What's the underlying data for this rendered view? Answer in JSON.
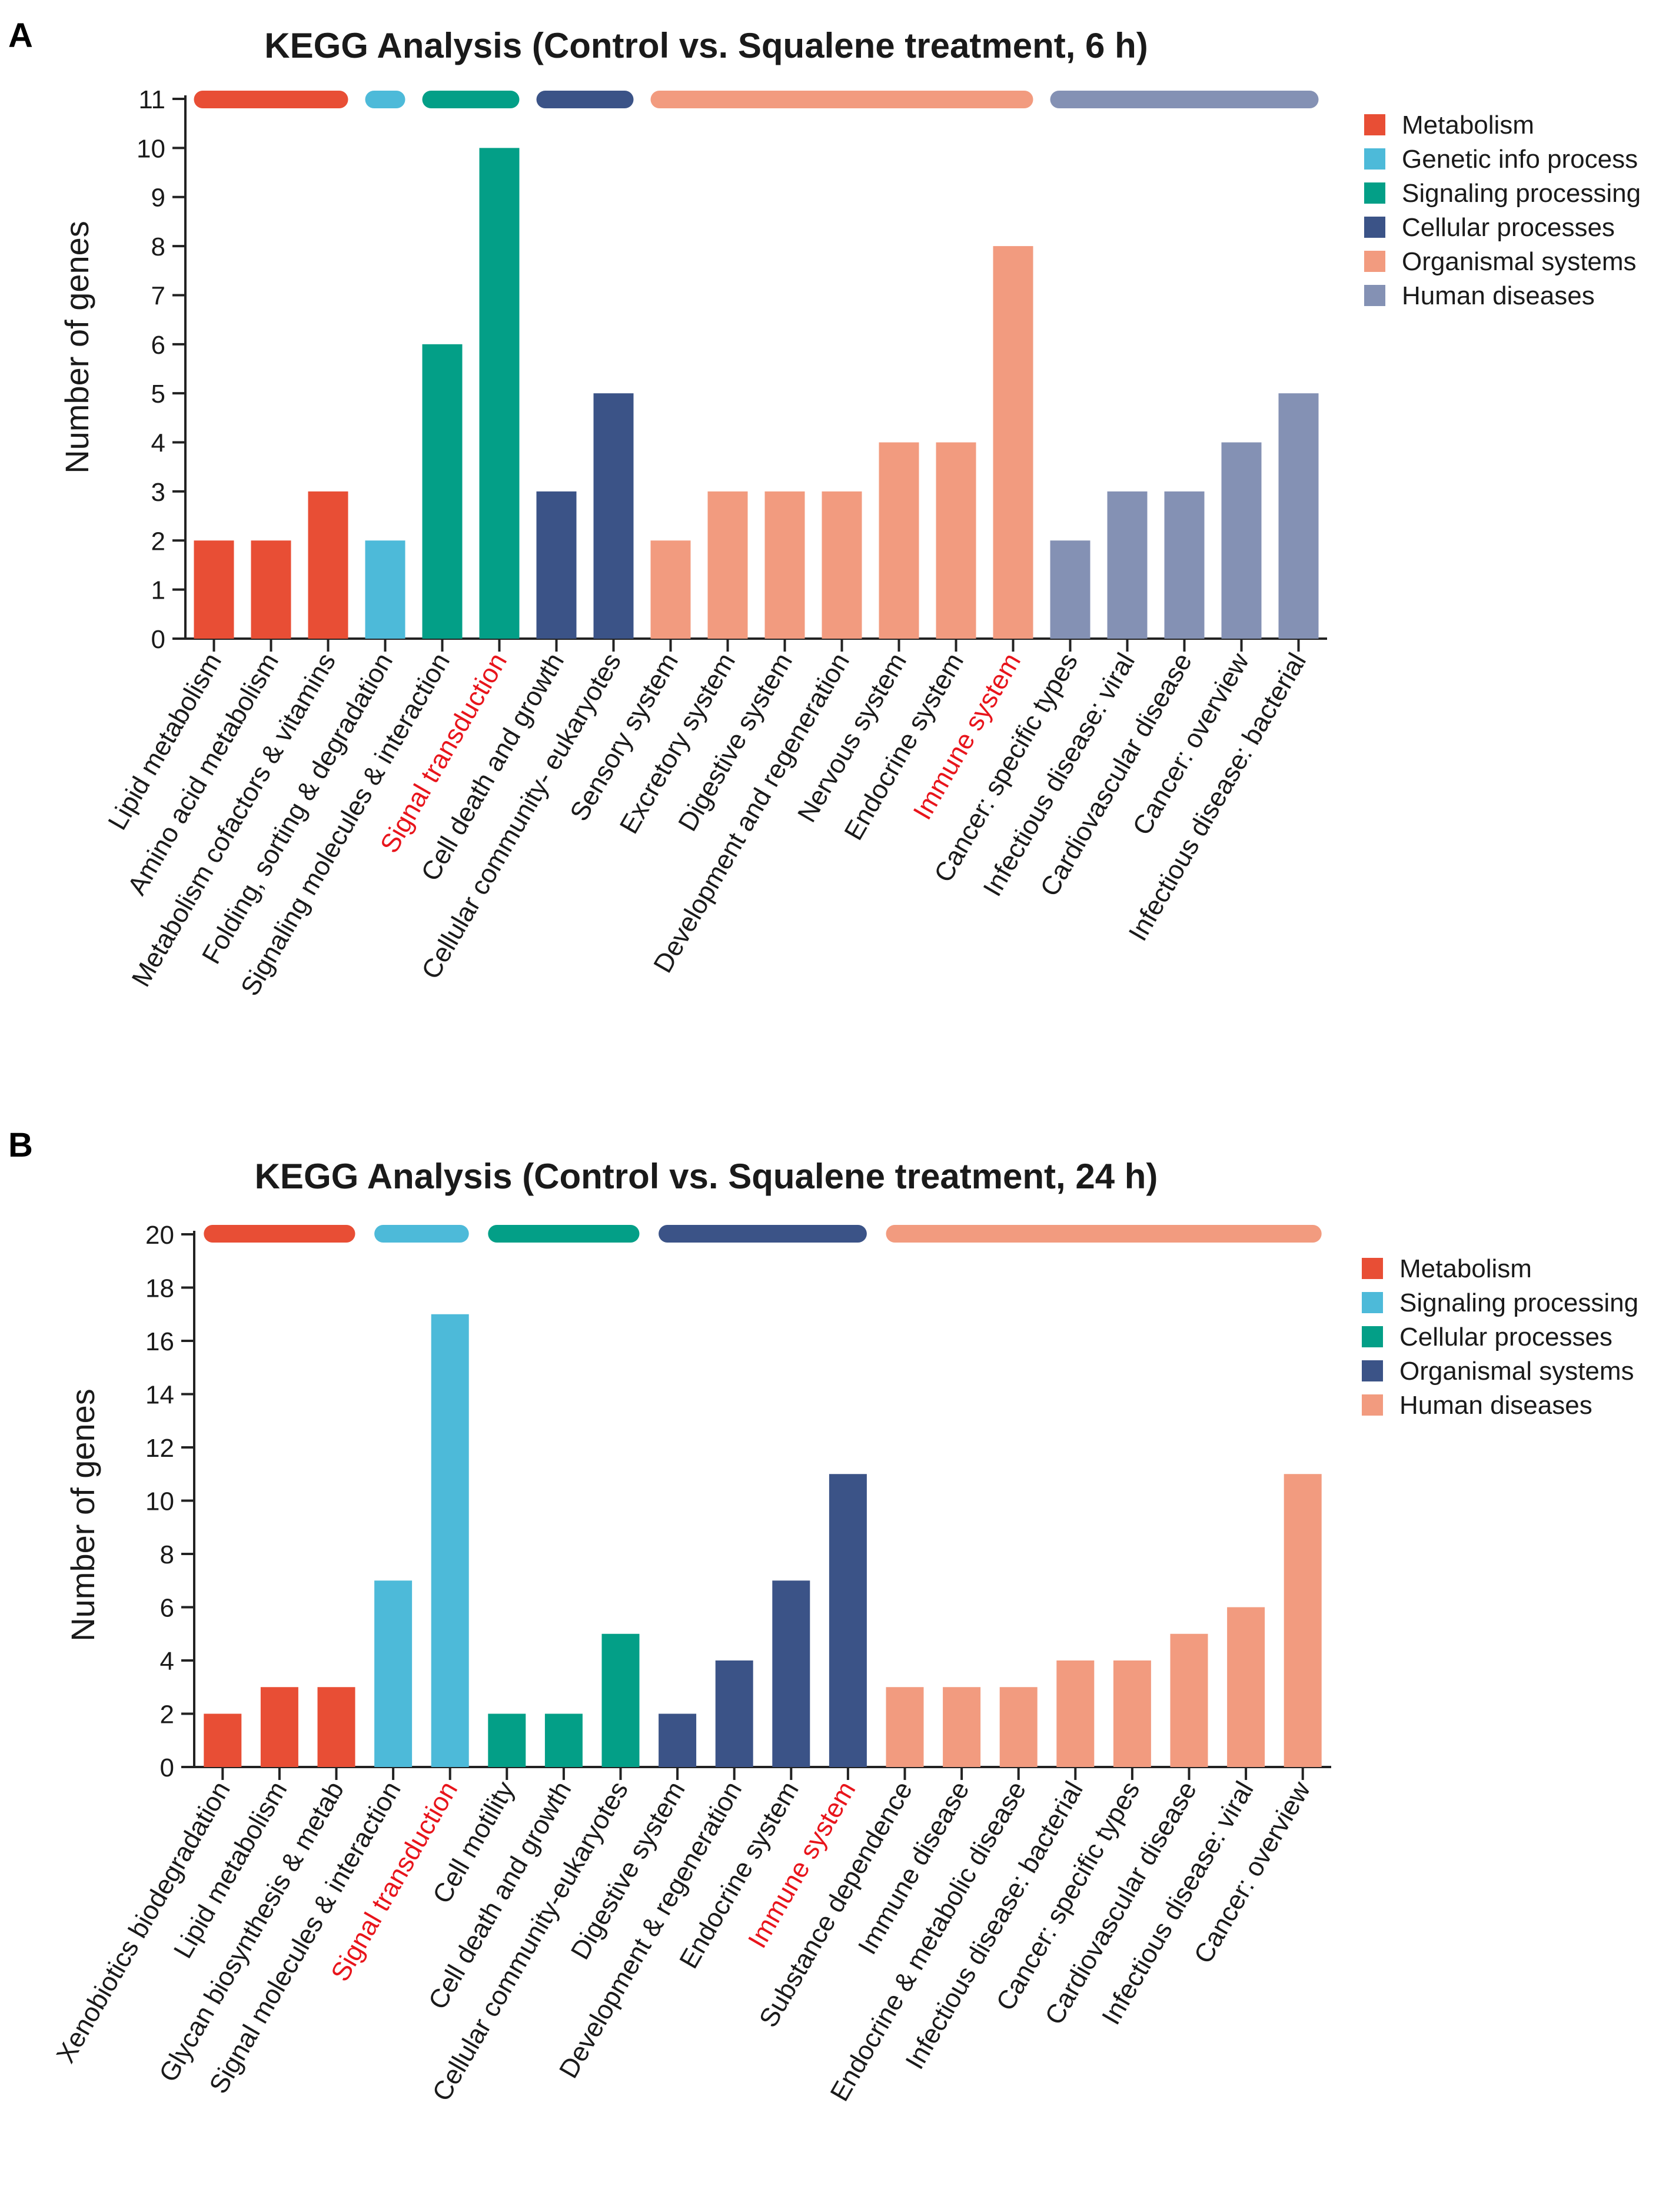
{
  "chart_data": [
    {
      "type": "bar",
      "panel_letter": "A",
      "title": "KEGG Analysis (Control vs. Squalene treatment, 6 h)",
      "xlabel": "",
      "ylabel": "Number of genes",
      "ylim": [
        0,
        11
      ],
      "yticks": [
        0,
        1,
        2,
        3,
        4,
        5,
        6,
        7,
        8,
        9,
        10,
        11
      ],
      "categories": [
        "Lipid metabolism",
        "Amino acid metabolism",
        "Metabolism cofactors & vitamins",
        "Folding, sorting & degradation",
        "Signaling molecules & interaction",
        "Signal transduction",
        "Cell death and growth",
        "Cellular community- eukaryotes",
        "Sensory system",
        "Excretory system",
        "Digestive system",
        "Development and regeneration",
        "Nervous system",
        "Endocrine system",
        "Immune system",
        "Cancer: specific types",
        "Infectious disease: viral",
        "Cardiovascular disease",
        "Cancer: overview",
        "Infectious disease: bacterial"
      ],
      "values": [
        2,
        2,
        3,
        2,
        6,
        10,
        3,
        5,
        2,
        3,
        3,
        3,
        4,
        4,
        8,
        2,
        3,
        3,
        4,
        5
      ],
      "groups": [
        0,
        0,
        0,
        1,
        2,
        2,
        3,
        3,
        4,
        4,
        4,
        4,
        4,
        4,
        4,
        5,
        5,
        5,
        5,
        5
      ],
      "highlighted": [
        5,
        14
      ],
      "highlight_color": "#e8141b",
      "legend": [
        {
          "label": "Metabolism",
          "color": "#e84e35"
        },
        {
          "label": "Genetic info process",
          "color": "#4dbad9"
        },
        {
          "label": "Signaling processing",
          "color": "#039f87"
        },
        {
          "label": "Cellular processes",
          "color": "#3b5387"
        },
        {
          "label": "Organismal systems",
          "color": "#f29b7f"
        },
        {
          "label": "Human diseases",
          "color": "#8491b4"
        }
      ],
      "legend_position": "top-right"
    },
    {
      "type": "bar",
      "panel_letter": "B",
      "title": "KEGG Analysis (Control vs. Squalene treatment, 24 h)",
      "xlabel": "",
      "ylabel": "Number of genes",
      "ylim": [
        0,
        20
      ],
      "yticks": [
        0,
        2,
        4,
        6,
        8,
        10,
        12,
        14,
        16,
        18,
        20
      ],
      "categories": [
        "Xenobiotics biodegradation",
        "Lipid metabolism",
        "Glycan biosynthesis & metab",
        "Signal molecules & interaction",
        "Signal transduction",
        "Cell motility",
        "Cell death and growth",
        "Cellular community-eukaryotes",
        "Digestive system",
        "Development & regeneration",
        "Endocrine system",
        "Immune system",
        "Substance dependence",
        "Immune disease",
        "Endocrine & metabolic disease",
        "Infectious disease: bacterial",
        "Cancer: specific types",
        "Cardiovascular disease",
        "Infectious disease: viral",
        "Cancer: overview"
      ],
      "values": [
        2,
        3,
        3,
        7,
        17,
        2,
        2,
        5,
        2,
        4,
        7,
        11,
        3,
        3,
        3,
        4,
        4,
        5,
        6,
        11
      ],
      "groups": [
        0,
        0,
        0,
        1,
        1,
        2,
        2,
        2,
        3,
        3,
        3,
        3,
        4,
        4,
        4,
        4,
        4,
        4,
        4,
        4
      ],
      "highlighted": [
        4,
        11
      ],
      "highlight_color": "#e8141b",
      "legend": [
        {
          "label": "Metabolism",
          "color": "#e84e35"
        },
        {
          "label": "Signaling processing",
          "color": "#4dbad9"
        },
        {
          "label": "Cellular processes",
          "color": "#039f87"
        },
        {
          "label": "Organismal systems",
          "color": "#3b5387"
        },
        {
          "label": "Human diseases",
          "color": "#f29b7f"
        }
      ],
      "legend_position": "top-right"
    }
  ]
}
